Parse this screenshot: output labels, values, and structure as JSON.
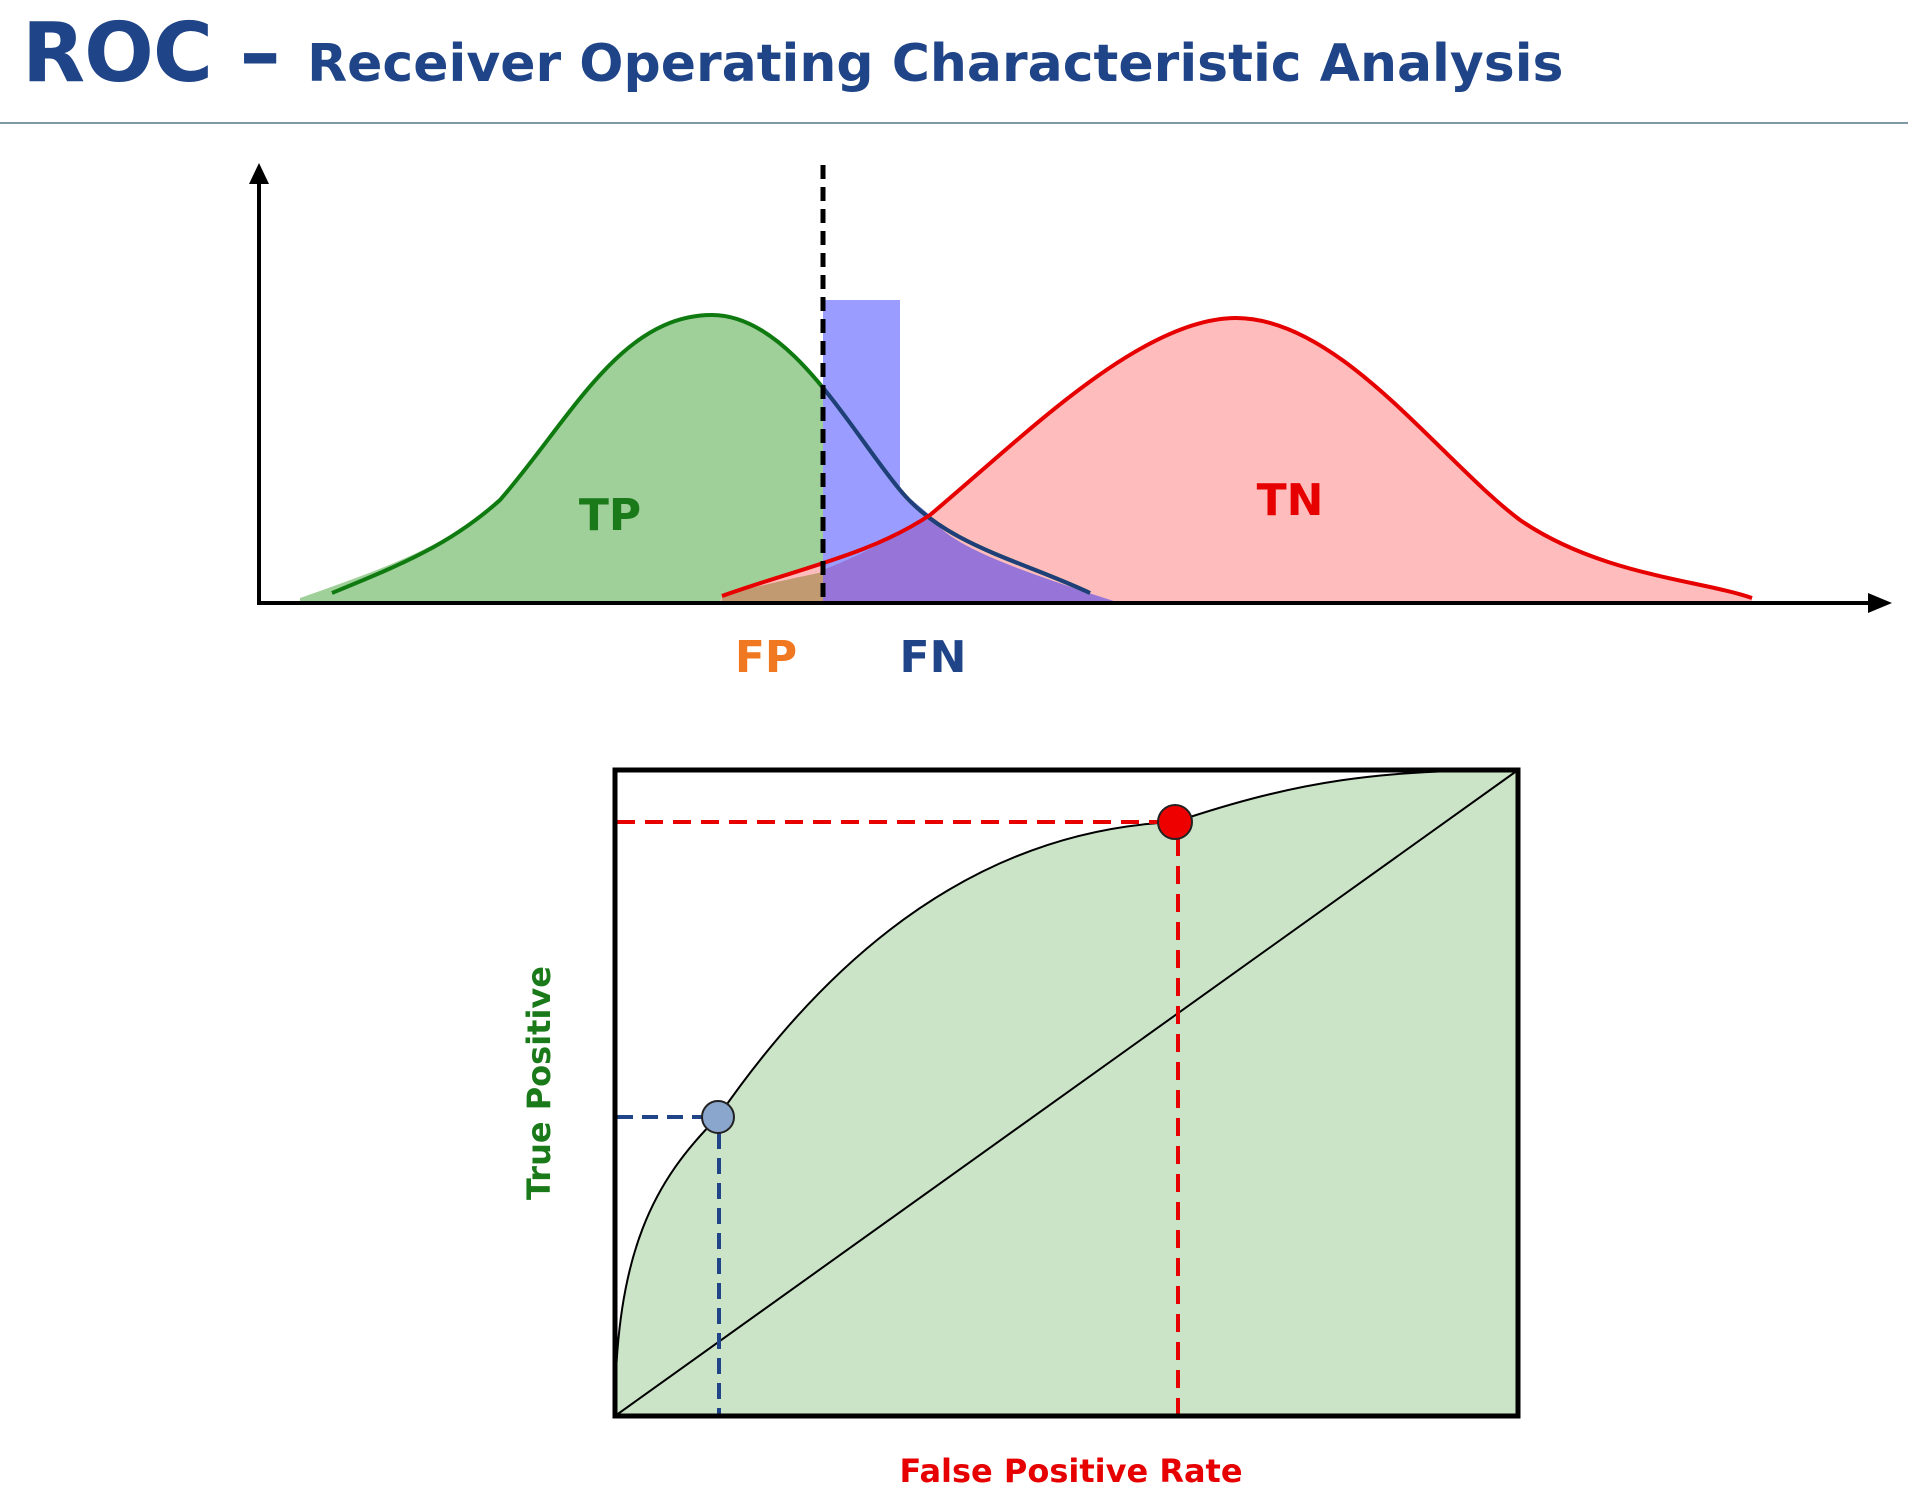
{
  "header": {
    "title_main": "ROC – ",
    "title_sub": "Receiver Operating Characteristic Analysis"
  },
  "distribution_labels": {
    "tp": "TP",
    "tn": "TN",
    "fp": "FP",
    "fn": "FN"
  },
  "roc_axes": {
    "ylabel": "True Positive",
    "xlabel": "False Positive Rate"
  },
  "colors": {
    "title": "#1f4487",
    "tp": "#1a7a1a",
    "tn": "#e60000",
    "fp": "#f07820",
    "fn": "#1f4487",
    "ylabel": "#1a7a1a",
    "xlabel": "#e60000"
  }
}
